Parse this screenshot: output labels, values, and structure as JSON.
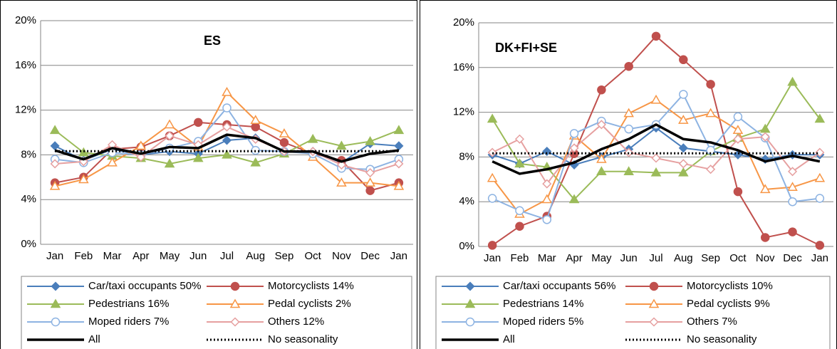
{
  "chart_data": [
    {
      "type": "line",
      "title": "ES",
      "categories": [
        "Jan",
        "Feb",
        "Mar",
        "Apr",
        "May",
        "Jun",
        "Jul",
        "Aug",
        "Sep",
        "Oct",
        "Nov",
        "Dec",
        "Jan"
      ],
      "ylim": [
        0,
        20
      ],
      "yticks": [
        {
          "value": 0,
          "label": "0%"
        },
        {
          "value": 4,
          "label": "4%"
        },
        {
          "value": 8,
          "label": "8%"
        },
        {
          "value": 12,
          "label": "12%"
        },
        {
          "value": 16,
          "label": "16%"
        },
        {
          "value": 20,
          "label": "20%"
        }
      ],
      "grid": true,
      "legend": "bottom",
      "series": [
        {
          "name": "Car/taxi occupants 50%",
          "color": "#4a7ebb",
          "marker": "diamond",
          "filled": true,
          "values": [
            8.8,
            7.5,
            8.5,
            8.0,
            8.3,
            8.1,
            9.3,
            9.5,
            8.3,
            8.3,
            7.3,
            9.0,
            8.8
          ]
        },
        {
          "name": "Motorcyclists 14%",
          "color": "#c0504d",
          "marker": "circle",
          "filled": true,
          "values": [
            5.5,
            6.0,
            8.5,
            8.7,
            9.7,
            10.9,
            10.7,
            10.5,
            9.1,
            8.1,
            7.5,
            4.8,
            5.5
          ]
        },
        {
          "name": "Pedestrians 16%",
          "color": "#9bbb59",
          "marker": "triangle",
          "filled": true,
          "values": [
            10.2,
            8.2,
            7.9,
            7.7,
            7.2,
            7.7,
            8.0,
            7.3,
            8.1,
            9.4,
            8.8,
            9.2,
            10.2
          ]
        },
        {
          "name": "Pedal cyclists 2%",
          "color": "#f79646",
          "marker": "triangle",
          "filled": false,
          "values": [
            5.2,
            5.8,
            7.3,
            8.8,
            10.7,
            8.7,
            13.6,
            11.1,
            9.9,
            7.8,
            5.5,
            5.5,
            5.2
          ]
        },
        {
          "name": "Moped riders 7%",
          "color": "#8db3e2",
          "marker": "circle",
          "filled": false,
          "values": [
            7.6,
            7.3,
            8.2,
            8.0,
            8.6,
            9.2,
            12.2,
            8.4,
            8.3,
            8.1,
            6.8,
            6.7,
            7.6
          ]
        },
        {
          "name": "Others 12%",
          "color": "#e6a0a0",
          "marker": "diamond",
          "filled": false,
          "values": [
            7.2,
            7.4,
            8.9,
            7.8,
            9.7,
            8.9,
            10.5,
            9.4,
            8.3,
            8.3,
            7.1,
            6.4,
            7.2
          ]
        },
        {
          "name": "All",
          "color": "#000000",
          "marker": "none",
          "width": 3.5,
          "values": [
            8.4,
            7.6,
            8.6,
            8.1,
            8.7,
            8.6,
            9.8,
            9.5,
            8.3,
            8.3,
            7.4,
            8.1,
            8.4
          ]
        },
        {
          "name": "No seasonality",
          "color": "#000000",
          "marker": "none",
          "dash": "dotted",
          "values": [
            8.33,
            8.33,
            8.33,
            8.33,
            8.33,
            8.33,
            8.33,
            8.33,
            8.33,
            8.33,
            8.33,
            8.33,
            8.33
          ]
        }
      ]
    },
    {
      "type": "line",
      "title": "DK+FI+SE",
      "categories": [
        "Jan",
        "Feb",
        "Mar",
        "Apr",
        "May",
        "Jun",
        "Jul",
        "Aug",
        "Sep",
        "Oct",
        "Nov",
        "Dec",
        "Jan"
      ],
      "ylim": [
        0,
        20
      ],
      "yticks": [
        {
          "value": 0,
          "label": "0%"
        },
        {
          "value": 4,
          "label": "4%"
        },
        {
          "value": 8,
          "label": "8%"
        },
        {
          "value": 12,
          "label": "12%"
        },
        {
          "value": 16,
          "label": "16%"
        },
        {
          "value": 20,
          "label": "20%"
        }
      ],
      "grid": true,
      "legend": "bottom",
      "series": [
        {
          "name": "Car/taxi occupants 56%",
          "color": "#4a7ebb",
          "marker": "diamond",
          "filled": true,
          "values": [
            8.2,
            7.4,
            8.5,
            7.3,
            8.0,
            8.7,
            10.6,
            8.8,
            8.5,
            8.2,
            7.8,
            8.2,
            8.2
          ]
        },
        {
          "name": "Motorcyclists 10%",
          "color": "#c0504d",
          "marker": "circle",
          "filled": true,
          "values": [
            0.1,
            1.8,
            2.7,
            8.3,
            14.0,
            16.1,
            18.8,
            16.7,
            14.5,
            4.9,
            0.8,
            1.3,
            0.1
          ]
        },
        {
          "name": "Pedestrians 14%",
          "color": "#9bbb59",
          "marker": "triangle",
          "filled": true,
          "values": [
            11.4,
            7.4,
            7.1,
            4.2,
            6.7,
            6.7,
            6.6,
            6.6,
            8.5,
            9.7,
            10.5,
            14.7,
            11.4
          ]
        },
        {
          "name": "Pedal cyclists 9%",
          "color": "#f79646",
          "marker": "triangle",
          "filled": false,
          "values": [
            6.1,
            2.9,
            4.2,
            9.9,
            7.8,
            11.9,
            13.1,
            11.3,
            11.9,
            10.4,
            5.1,
            5.3,
            6.1
          ]
        },
        {
          "name": "Moped riders 5%",
          "color": "#8db3e2",
          "marker": "circle",
          "filled": false,
          "values": [
            4.3,
            3.2,
            2.4,
            10.1,
            11.2,
            10.5,
            10.9,
            13.6,
            8.6,
            11.6,
            9.7,
            4.0,
            4.3
          ]
        },
        {
          "name": "Others 7%",
          "color": "#e6a0a0",
          "marker": "diamond",
          "filled": false,
          "values": [
            8.4,
            9.6,
            5.6,
            8.8,
            10.9,
            8.4,
            7.9,
            7.4,
            6.9,
            9.6,
            9.8,
            6.7,
            8.4
          ]
        },
        {
          "name": "All",
          "color": "#000000",
          "marker": "none",
          "width": 3.5,
          "values": [
            7.6,
            6.5,
            6.9,
            7.5,
            8.7,
            9.6,
            10.9,
            9.6,
            9.3,
            8.6,
            7.6,
            8.1,
            7.6
          ]
        },
        {
          "name": "No seasonality",
          "color": "#000000",
          "marker": "none",
          "dash": "dotted",
          "values": [
            8.33,
            8.33,
            8.33,
            8.33,
            8.33,
            8.33,
            8.33,
            8.33,
            8.33,
            8.33,
            8.33,
            8.33,
            8.33
          ]
        }
      ]
    }
  ]
}
